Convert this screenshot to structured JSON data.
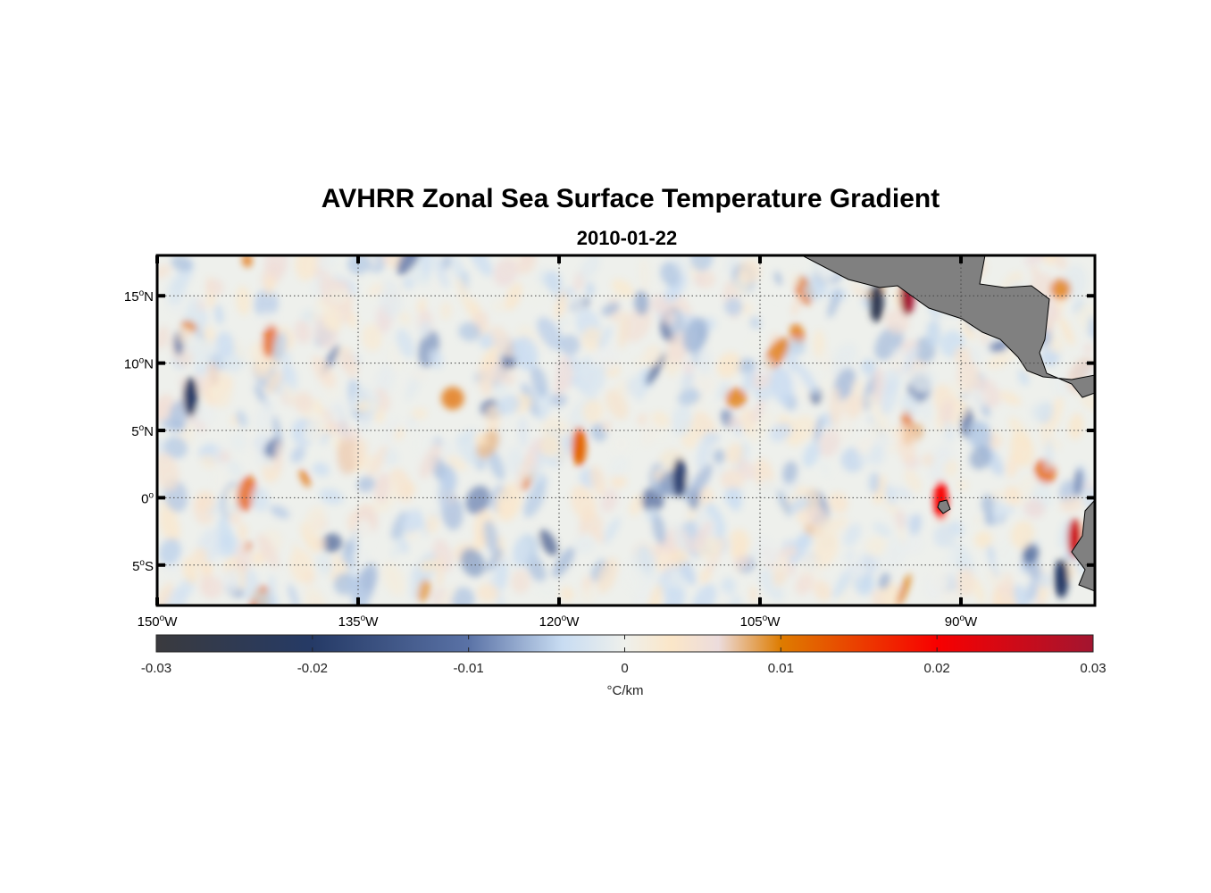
{
  "title": "AVHRR Zonal Sea Surface Temperature Gradient",
  "subtitle": "2010-01-22",
  "chart_data": {
    "type": "heatmap",
    "title": "AVHRR Zonal Sea Surface Temperature Gradient",
    "subtitle": "2010-01-22",
    "xlim": [
      -150,
      -80
    ],
    "ylim": [
      -8,
      18
    ],
    "grid": true,
    "x_ticks": [
      {
        "value": -150,
        "label": "150",
        "suffix": "W"
      },
      {
        "value": -135,
        "label": "135",
        "suffix": "W"
      },
      {
        "value": -120,
        "label": "120",
        "suffix": "W"
      },
      {
        "value": -105,
        "label": "105",
        "suffix": "W"
      },
      {
        "value": -90,
        "label": "90",
        "suffix": "W"
      }
    ],
    "y_ticks": [
      {
        "value": 15,
        "label": "15",
        "suffix": "N"
      },
      {
        "value": 10,
        "label": "10",
        "suffix": "N"
      },
      {
        "value": 5,
        "label": "5",
        "suffix": "N"
      },
      {
        "value": 0,
        "label": "0",
        "suffix": ""
      },
      {
        "value": -5,
        "label": "5",
        "suffix": "S"
      }
    ],
    "colorbar": {
      "range": [
        -0.03,
        0.03
      ],
      "ticks": [
        "-0.03",
        "-0.02",
        "-0.01",
        "0",
        "0.01",
        "0.02",
        "0.03"
      ],
      "label": "°C/km",
      "colormap": [
        {
          "v": -0.03,
          "color": "#3a3a3e"
        },
        {
          "v": -0.02,
          "color": "#253a66"
        },
        {
          "v": -0.01,
          "color": "#5a72a6"
        },
        {
          "v": -0.004,
          "color": "#c8dcf2"
        },
        {
          "v": 0,
          "color": "#eef0ec"
        },
        {
          "v": 0.003,
          "color": "#fbe6c8"
        },
        {
          "v": 0.006,
          "color": "#ecdcdc"
        },
        {
          "v": 0.01,
          "color": "#de7c00"
        },
        {
          "v": 0.02,
          "color": "#f80000"
        },
        {
          "v": 0.03,
          "color": "#a31530"
        }
      ]
    },
    "notable_features": [
      {
        "lon": -96.3,
        "lat": 14.5,
        "value": -0.025
      },
      {
        "lon": -94.0,
        "lat": 15.0,
        "value": 0.03
      },
      {
        "lon": -91.5,
        "lat": -0.2,
        "value": 0.02
      },
      {
        "lon": -81.5,
        "lat": -3.0,
        "value": 0.025
      },
      {
        "lon": -82.5,
        "lat": -6.0,
        "value": -0.02
      },
      {
        "lon": -118.5,
        "lat": 3.8,
        "value": 0.012
      },
      {
        "lon": -111,
        "lat": 1.5,
        "value": -0.018
      },
      {
        "lon": -147.5,
        "lat": 7.5,
        "value": -0.02
      }
    ],
    "land_color": "#808080"
  }
}
